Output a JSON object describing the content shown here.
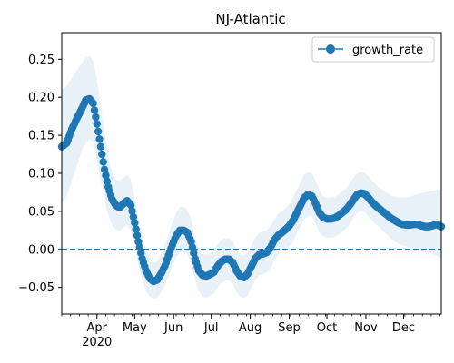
{
  "chart_data": {
    "type": "line",
    "title": "NJ-Atlantic",
    "xlabel": "",
    "ylabel": "",
    "xlim": [
      "2020-03-04",
      "2020-12-31"
    ],
    "ylim": [
      -0.085,
      0.285
    ],
    "grid": false,
    "legend_position": "top-right",
    "y_ticks": [
      -0.05,
      0.0,
      0.05,
      0.1,
      0.15,
      0.2,
      0.25
    ],
    "y_tick_labels": [
      "−0.05",
      "0.00",
      "0.05",
      "0.10",
      "0.15",
      "0.20",
      "0.25"
    ],
    "x_ticks": [
      "2020-04-01",
      "2020-05-01",
      "2020-06-01",
      "2020-07-01",
      "2020-08-01",
      "2020-09-01",
      "2020-10-01",
      "2020-11-01",
      "2020-12-01"
    ],
    "x_tick_labels": [
      "Apr",
      "May",
      "Jun",
      "Jul",
      "Aug",
      "Sep",
      "Oct",
      "Nov",
      "Dec"
    ],
    "x_year_label": "2020",
    "reference_line": {
      "y": 0.0,
      "style": "dashed"
    },
    "series": [
      {
        "name": "growth_rate",
        "color": "#1f77b4",
        "marker": "circle",
        "band_color": "#1f77b4",
        "x": [
          "2020-03-04",
          "2020-03-08",
          "2020-03-12",
          "2020-03-16",
          "2020-03-20",
          "2020-03-23",
          "2020-03-26",
          "2020-03-29",
          "2020-04-01",
          "2020-04-04",
          "2020-04-07",
          "2020-04-10",
          "2020-04-13",
          "2020-04-16",
          "2020-04-19",
          "2020-04-22",
          "2020-04-25",
          "2020-04-28",
          "2020-05-01",
          "2020-05-04",
          "2020-05-07",
          "2020-05-10",
          "2020-05-13",
          "2020-05-16",
          "2020-05-19",
          "2020-05-22",
          "2020-05-25",
          "2020-05-28",
          "2020-05-31",
          "2020-06-03",
          "2020-06-06",
          "2020-06-09",
          "2020-06-12",
          "2020-06-15",
          "2020-06-18",
          "2020-06-21",
          "2020-06-24",
          "2020-06-27",
          "2020-06-30",
          "2020-07-03",
          "2020-07-06",
          "2020-07-09",
          "2020-07-12",
          "2020-07-15",
          "2020-07-18",
          "2020-07-21",
          "2020-07-24",
          "2020-07-27",
          "2020-07-30",
          "2020-08-02",
          "2020-08-05",
          "2020-08-08",
          "2020-08-11",
          "2020-08-14",
          "2020-08-17",
          "2020-08-20",
          "2020-08-23",
          "2020-08-26",
          "2020-08-29",
          "2020-09-01",
          "2020-09-04",
          "2020-09-07",
          "2020-09-10",
          "2020-09-13",
          "2020-09-16",
          "2020-09-19",
          "2020-09-22",
          "2020-09-25",
          "2020-09-28",
          "2020-10-01",
          "2020-10-04",
          "2020-10-07",
          "2020-10-10",
          "2020-10-13",
          "2020-10-16",
          "2020-10-19",
          "2020-10-22",
          "2020-10-25",
          "2020-10-28",
          "2020-10-31",
          "2020-11-03",
          "2020-11-06",
          "2020-11-09",
          "2020-11-12",
          "2020-11-15",
          "2020-11-18",
          "2020-11-21",
          "2020-11-24",
          "2020-11-27",
          "2020-11-30",
          "2020-12-03",
          "2020-12-06",
          "2020-12-09",
          "2020-12-12",
          "2020-12-15",
          "2020-12-18",
          "2020-12-21",
          "2020-12-24",
          "2020-12-27",
          "2020-12-31"
        ],
        "values": [
          0.135,
          0.14,
          0.158,
          0.172,
          0.185,
          0.196,
          0.198,
          0.192,
          0.165,
          0.135,
          0.105,
          0.082,
          0.066,
          0.058,
          0.055,
          0.06,
          0.064,
          0.058,
          0.035,
          0.01,
          -0.012,
          -0.028,
          -0.038,
          -0.042,
          -0.04,
          -0.032,
          -0.022,
          -0.008,
          0.006,
          0.018,
          0.025,
          0.025,
          0.022,
          0.01,
          -0.012,
          -0.028,
          -0.034,
          -0.035,
          -0.033,
          -0.03,
          -0.022,
          -0.016,
          -0.013,
          -0.013,
          -0.017,
          -0.028,
          -0.035,
          -0.037,
          -0.032,
          -0.022,
          -0.012,
          -0.007,
          -0.006,
          -0.004,
          0.002,
          0.012,
          0.018,
          0.022,
          0.026,
          0.031,
          0.038,
          0.048,
          0.058,
          0.068,
          0.072,
          0.07,
          0.06,
          0.048,
          0.042,
          0.04,
          0.04,
          0.041,
          0.044,
          0.048,
          0.052,
          0.058,
          0.065,
          0.072,
          0.074,
          0.073,
          0.068,
          0.062,
          0.057,
          0.053,
          0.049,
          0.045,
          0.041,
          0.038,
          0.035,
          0.033,
          0.032,
          0.032,
          0.033,
          0.033,
          0.031,
          0.03,
          0.03,
          0.031,
          0.033,
          0.03
        ],
        "lower": [
          0.06,
          0.07,
          0.09,
          0.11,
          0.13,
          0.14,
          0.145,
          0.14,
          0.115,
          0.09,
          0.065,
          0.045,
          0.032,
          0.026,
          0.024,
          0.028,
          0.032,
          0.026,
          0.005,
          -0.02,
          -0.04,
          -0.055,
          -0.062,
          -0.065,
          -0.063,
          -0.057,
          -0.048,
          -0.035,
          -0.022,
          -0.01,
          -0.004,
          -0.004,
          -0.006,
          -0.018,
          -0.04,
          -0.055,
          -0.062,
          -0.063,
          -0.061,
          -0.058,
          -0.05,
          -0.044,
          -0.041,
          -0.041,
          -0.045,
          -0.056,
          -0.062,
          -0.064,
          -0.06,
          -0.05,
          -0.04,
          -0.034,
          -0.033,
          -0.03,
          -0.025,
          -0.015,
          -0.008,
          -0.004,
          0.0,
          0.004,
          0.01,
          0.02,
          0.03,
          0.04,
          0.045,
          0.043,
          0.034,
          0.022,
          0.017,
          0.015,
          0.015,
          0.016,
          0.019,
          0.023,
          0.027,
          0.033,
          0.04,
          0.048,
          0.05,
          0.049,
          0.044,
          0.038,
          0.033,
          0.029,
          0.024,
          0.019,
          0.014,
          0.01,
          0.007,
          0.005,
          0.004,
          0.003,
          0.002,
          0.0,
          -0.002,
          -0.004,
          -0.005,
          -0.006,
          -0.008,
          -0.012
        ],
        "upper": [
          0.21,
          0.215,
          0.225,
          0.235,
          0.245,
          0.252,
          0.255,
          0.248,
          0.222,
          0.19,
          0.155,
          0.122,
          0.102,
          0.092,
          0.09,
          0.094,
          0.098,
          0.092,
          0.068,
          0.042,
          0.018,
          0.0,
          -0.012,
          -0.018,
          -0.016,
          -0.006,
          0.006,
          0.02,
          0.035,
          0.048,
          0.056,
          0.056,
          0.052,
          0.04,
          0.016,
          0.0,
          -0.006,
          -0.007,
          -0.005,
          -0.002,
          0.006,
          0.012,
          0.015,
          0.015,
          0.011,
          0.0,
          -0.007,
          -0.009,
          -0.004,
          0.006,
          0.016,
          0.022,
          0.023,
          0.025,
          0.03,
          0.04,
          0.046,
          0.05,
          0.054,
          0.059,
          0.068,
          0.078,
          0.088,
          0.098,
          0.102,
          0.1,
          0.09,
          0.078,
          0.07,
          0.068,
          0.068,
          0.069,
          0.072,
          0.076,
          0.08,
          0.086,
          0.094,
          0.1,
          0.102,
          0.101,
          0.096,
          0.09,
          0.085,
          0.081,
          0.077,
          0.074,
          0.071,
          0.069,
          0.068,
          0.068,
          0.068,
          0.069,
          0.071,
          0.073,
          0.074,
          0.075,
          0.076,
          0.077,
          0.078,
          0.078
        ]
      }
    ]
  }
}
